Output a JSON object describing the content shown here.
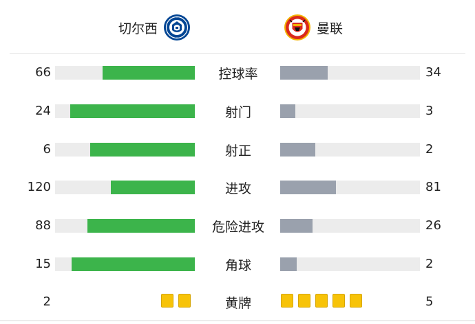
{
  "teams": {
    "home": {
      "name": "切尔西",
      "badge_icon": "chelsea-badge-icon",
      "badge_color": "#034694"
    },
    "away": {
      "name": "曼联",
      "badge_icon": "manchester-united-badge-icon",
      "badge_color": "#da291c"
    }
  },
  "colors": {
    "home_bar": "#3cb44b",
    "away_bar": "#9aa1ad",
    "track": "#ececec",
    "yellow_card": "#f7c308"
  },
  "stats": [
    {
      "label": "控球率",
      "home": "66",
      "away": "34",
      "home_fraction": 0.66,
      "away_fraction": 0.34
    },
    {
      "label": "射门",
      "home": "24",
      "away": "3",
      "home_fraction": 0.89,
      "away_fraction": 0.11
    },
    {
      "label": "射正",
      "home": "6",
      "away": "2",
      "home_fraction": 0.75,
      "away_fraction": 0.25
    },
    {
      "label": "进攻",
      "home": "120",
      "away": "81",
      "home_fraction": 0.6,
      "away_fraction": 0.4
    },
    {
      "label": "危险进攻",
      "home": "88",
      "away": "26",
      "home_fraction": 0.77,
      "away_fraction": 0.23
    },
    {
      "label": "角球",
      "home": "15",
      "away": "2",
      "home_fraction": 0.88,
      "away_fraction": 0.12
    }
  ],
  "yellow_cards": {
    "label": "黄牌",
    "home": "2",
    "away": "5",
    "home_count": 2,
    "away_count": 5
  }
}
